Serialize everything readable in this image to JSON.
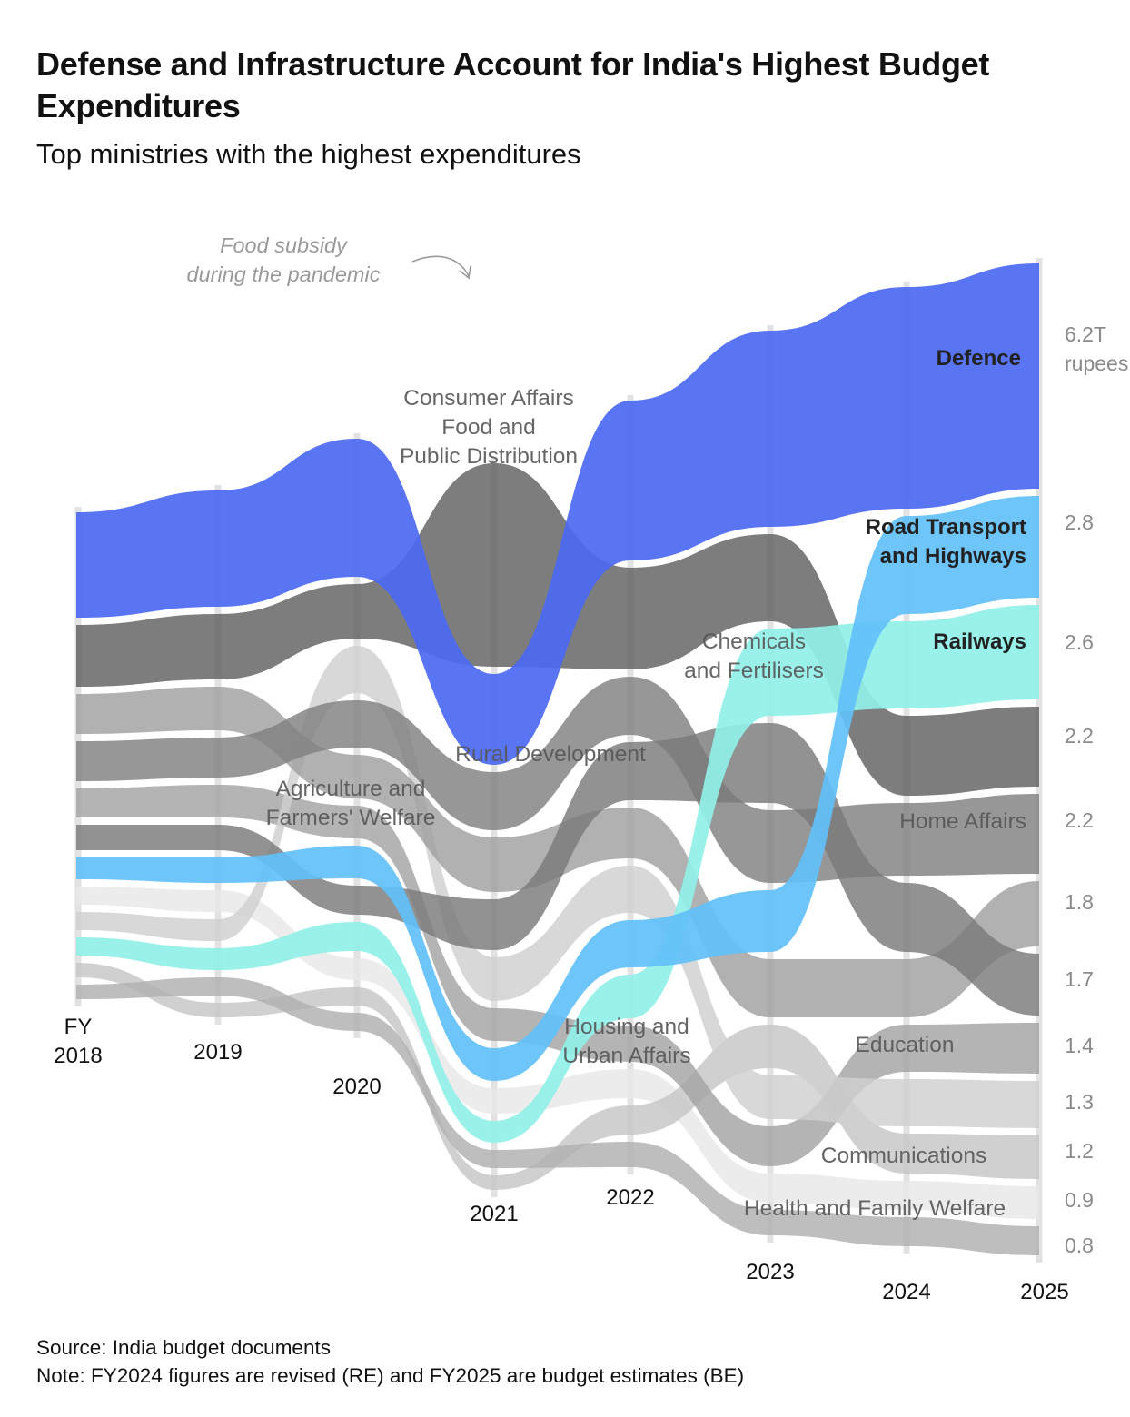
{
  "title": "Defense and Infrastructure Account for India's Highest Budget Expenditures",
  "subtitle": "Top ministries with the highest expenditures",
  "annotation": [
    "Food subsidy",
    "during the pandemic"
  ],
  "source": "Source: India budget documents",
  "note": "Note: FY2024 figures are revised (RE) and FY2025 are budget estimates (BE)",
  "chart_data": {
    "type": "bump-area",
    "unit": "rupees",
    "years": [
      "2018",
      "2019",
      "2020",
      "2021",
      "2022",
      "2023",
      "2024",
      "2025"
    ],
    "year_labels": [
      [
        "FY",
        "2018"
      ],
      [
        "2019"
      ],
      [
        "2020"
      ],
      [
        "2021"
      ],
      [
        "2022"
      ],
      [
        "2023"
      ],
      [
        "2024"
      ],
      [
        "2025"
      ]
    ],
    "end_value_labels": [
      [
        "6.2T",
        "rupees"
      ],
      [
        "2.8"
      ],
      [
        "2.6"
      ],
      [
        "2.2"
      ],
      [
        "2.2"
      ],
      [
        "1.8"
      ],
      [
        "1.7"
      ],
      [
        "1.4"
      ],
      [
        "1.3"
      ],
      [
        "1.2"
      ],
      [
        "0.9"
      ],
      [
        "0.8"
      ]
    ],
    "series": [
      {
        "name": "Defence",
        "label": [
          "Defence"
        ],
        "bold": true,
        "color": "#4c69f2",
        "values": [
          2.9,
          3.2,
          3.8,
          2.5,
          4.4,
          5.4,
          6.1,
          6.2
        ]
      },
      {
        "name": "Road Transport and Highways",
        "label": [
          "Road Transport",
          "and Highways"
        ],
        "bold": true,
        "color": "#62c0f8",
        "values": [
          0.6,
          0.7,
          0.9,
          0.9,
          1.3,
          1.7,
          2.7,
          2.8
        ]
      },
      {
        "name": "Railways",
        "label": [
          "Railways"
        ],
        "bold": true,
        "color": "#90f0e8",
        "values": [
          0.5,
          0.6,
          0.8,
          0.6,
          1.2,
          2.4,
          2.4,
          2.6
        ]
      },
      {
        "name": "Chemicals and Fertilisers",
        "label": [
          "Chemicals",
          "and Fertilisers"
        ],
        "color": "#7a7a7a",
        "values": [
          0.7,
          0.7,
          0.8,
          1.4,
          1.6,
          2.2,
          1.9,
          1.7
        ]
      },
      {
        "name": "Home Affairs",
        "label": [
          "Home Affairs"
        ],
        "color": "#808080",
        "values": [
          1.1,
          1.1,
          1.3,
          1.6,
          1.6,
          2.0,
          2.0,
          2.2
        ]
      },
      {
        "name": "Consumer Affairs Food and Public Distribution",
        "label": [
          "Consumer Affairs",
          "Food and",
          "Public Distribution"
        ],
        "color": "#606060",
        "values": [
          1.7,
          1.8,
          1.5,
          5.6,
          2.8,
          2.4,
          2.2,
          2.2
        ]
      },
      {
        "name": "Rural Development",
        "label": [
          "Rural Development"
        ],
        "color": "#a0a0a0",
        "values": [
          1.1,
          1.2,
          1.2,
          1.5,
          1.4,
          1.6,
          1.6,
          1.8
        ]
      },
      {
        "name": "Agriculture and Farmers' Welfare",
        "label": [
          "Agriculture and",
          "Farmers' Welfare"
        ],
        "color": "#d0d0d0",
        "values": [
          0.5,
          0.6,
          1.3,
          1.2,
          1.3,
          1.2,
          1.3,
          1.3
        ]
      },
      {
        "name": "Education",
        "label": [
          "Education"
        ],
        "color": "#a4a4a4",
        "values": [
          0.8,
          0.9,
          0.9,
          0.9,
          1.0,
          1.1,
          1.3,
          1.4
        ]
      },
      {
        "name": "Housing and Urban Affairs",
        "label": [
          "Housing and",
          "Urban Affairs"
        ],
        "color": "#b0b0b0",
        "values": [
          0.4,
          0.5,
          0.5,
          0.5,
          0.7,
          0.7,
          0.8,
          0.8
        ]
      },
      {
        "name": "Communications",
        "label": [
          "Communications"
        ],
        "color": "#c6c6c6",
        "values": [
          0.4,
          0.4,
          0.5,
          0.4,
          0.8,
          1.2,
          1.1,
          1.2
        ]
      },
      {
        "name": "Health and Family Welfare",
        "label": [
          "Health and Family Welfare"
        ],
        "color": "#e8e8e8",
        "values": [
          0.5,
          0.6,
          0.6,
          0.7,
          0.8,
          0.8,
          0.8,
          0.9
        ]
      }
    ]
  }
}
